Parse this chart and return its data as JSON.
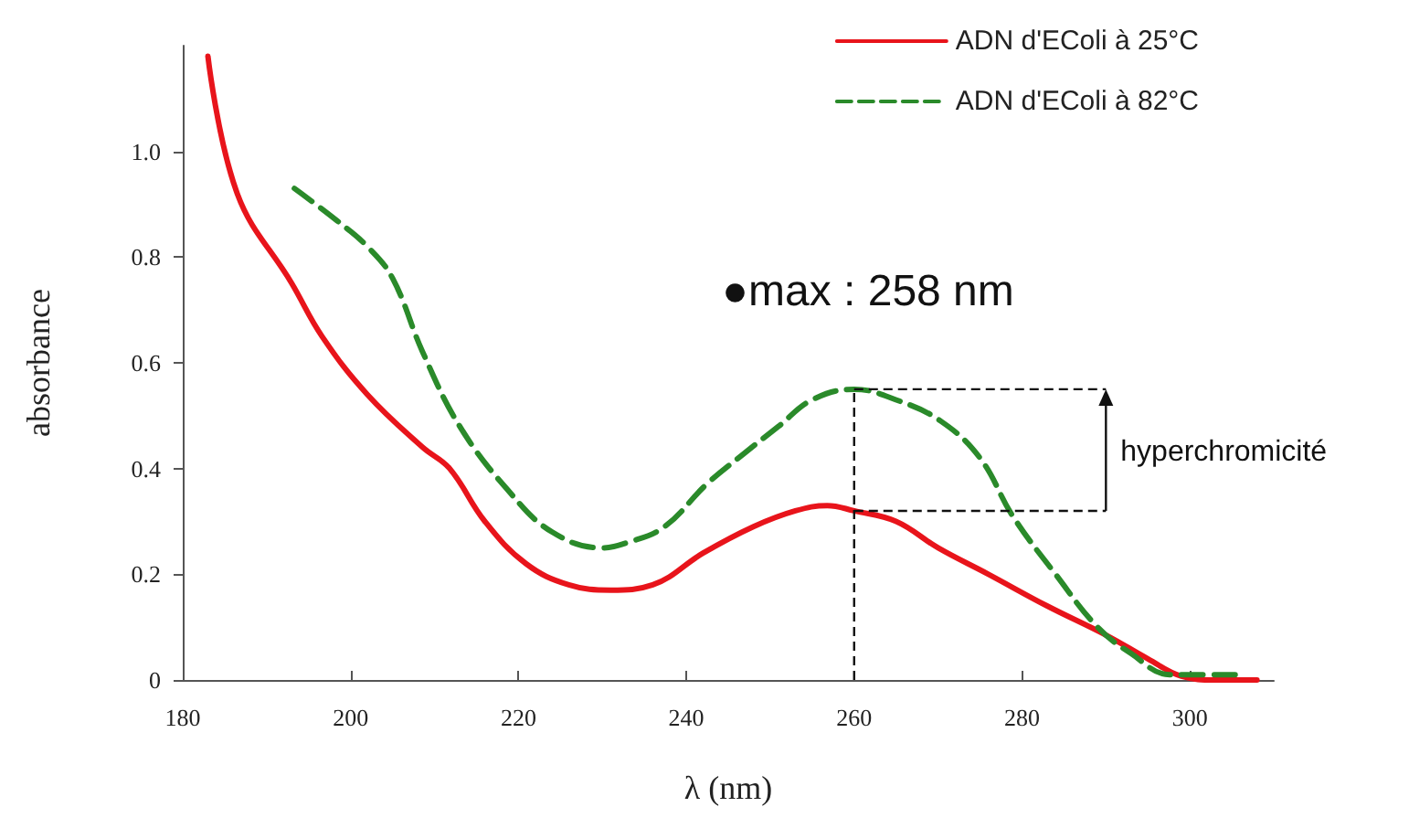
{
  "chart_data": {
    "type": "line",
    "xlabel": "λ (nm)",
    "ylabel": "absorbance",
    "xlim": [
      180,
      310
    ],
    "xticks": [
      180,
      200,
      220,
      240,
      260,
      280,
      300
    ],
    "ylim": [
      0,
      1.2
    ],
    "yticks": [
      0,
      0.2,
      0.4,
      0.6,
      0.8,
      {
        "value": 1,
        "label": "1.0"
      }
    ],
    "grid": false,
    "legend": "top right",
    "marker": "none",
    "series": [
      {
        "name": "ADN d'EColi à 25°C",
        "color": "#e8141b",
        "line_style": "solid",
        "x": [
          183,
          186.5,
          193,
          196.6,
          202,
          208.6,
          211.8,
          216,
          220.9,
          226,
          231,
          236,
          242,
          248,
          253,
          256.8,
          260,
          265,
          270,
          276,
          283,
          290,
          295,
          299,
          303,
          308
        ],
        "values": [
          1.18,
          0.92,
          0.75,
          0.65,
          0.54,
          0.44,
          0.4,
          0.3,
          0.22,
          0.18,
          0.17,
          0.18,
          0.24,
          0.29,
          0.32,
          0.33,
          0.32,
          0.3,
          0.25,
          0.2,
          0.14,
          0.085,
          0.04,
          0.007,
          0.0,
          0.0
        ]
      },
      {
        "name": "ADN d'EColi à 82°C",
        "color": "#2a8a2a",
        "line_style": "dashed",
        "x": [
          193.3,
          198.3,
          202,
          205,
          208.6,
          213,
          218.7,
          224,
          230,
          233,
          237.4,
          242.4,
          247,
          251,
          255,
          260,
          265,
          270.3,
          275,
          278.9,
          284,
          289,
          293,
          297.6,
          301,
          305.4
        ],
        "values": [
          0.93,
          0.87,
          0.82,
          0.76,
          0.62,
          0.48,
          0.36,
          0.28,
          0.25,
          0.26,
          0.29,
          0.37,
          0.43,
          0.48,
          0.53,
          0.55,
          0.53,
          0.49,
          0.42,
          0.31,
          0.2,
          0.1,
          0.05,
          0.01,
          0.01,
          0.01
        ]
      }
    ],
    "ref_lines": [
      {
        "axis": "x",
        "value": 260,
        "line_style": "dashed"
      },
      {
        "axis": "y",
        "value": 0.55,
        "line_style": "dashed"
      },
      {
        "axis": "y",
        "value": 0.32,
        "line_style": "dashed"
      }
    ],
    "annotations": [
      "●max : 258 nm",
      {
        "text": "hyperchromicité",
        "x": 290,
        "y": 0.55
      }
    ]
  }
}
